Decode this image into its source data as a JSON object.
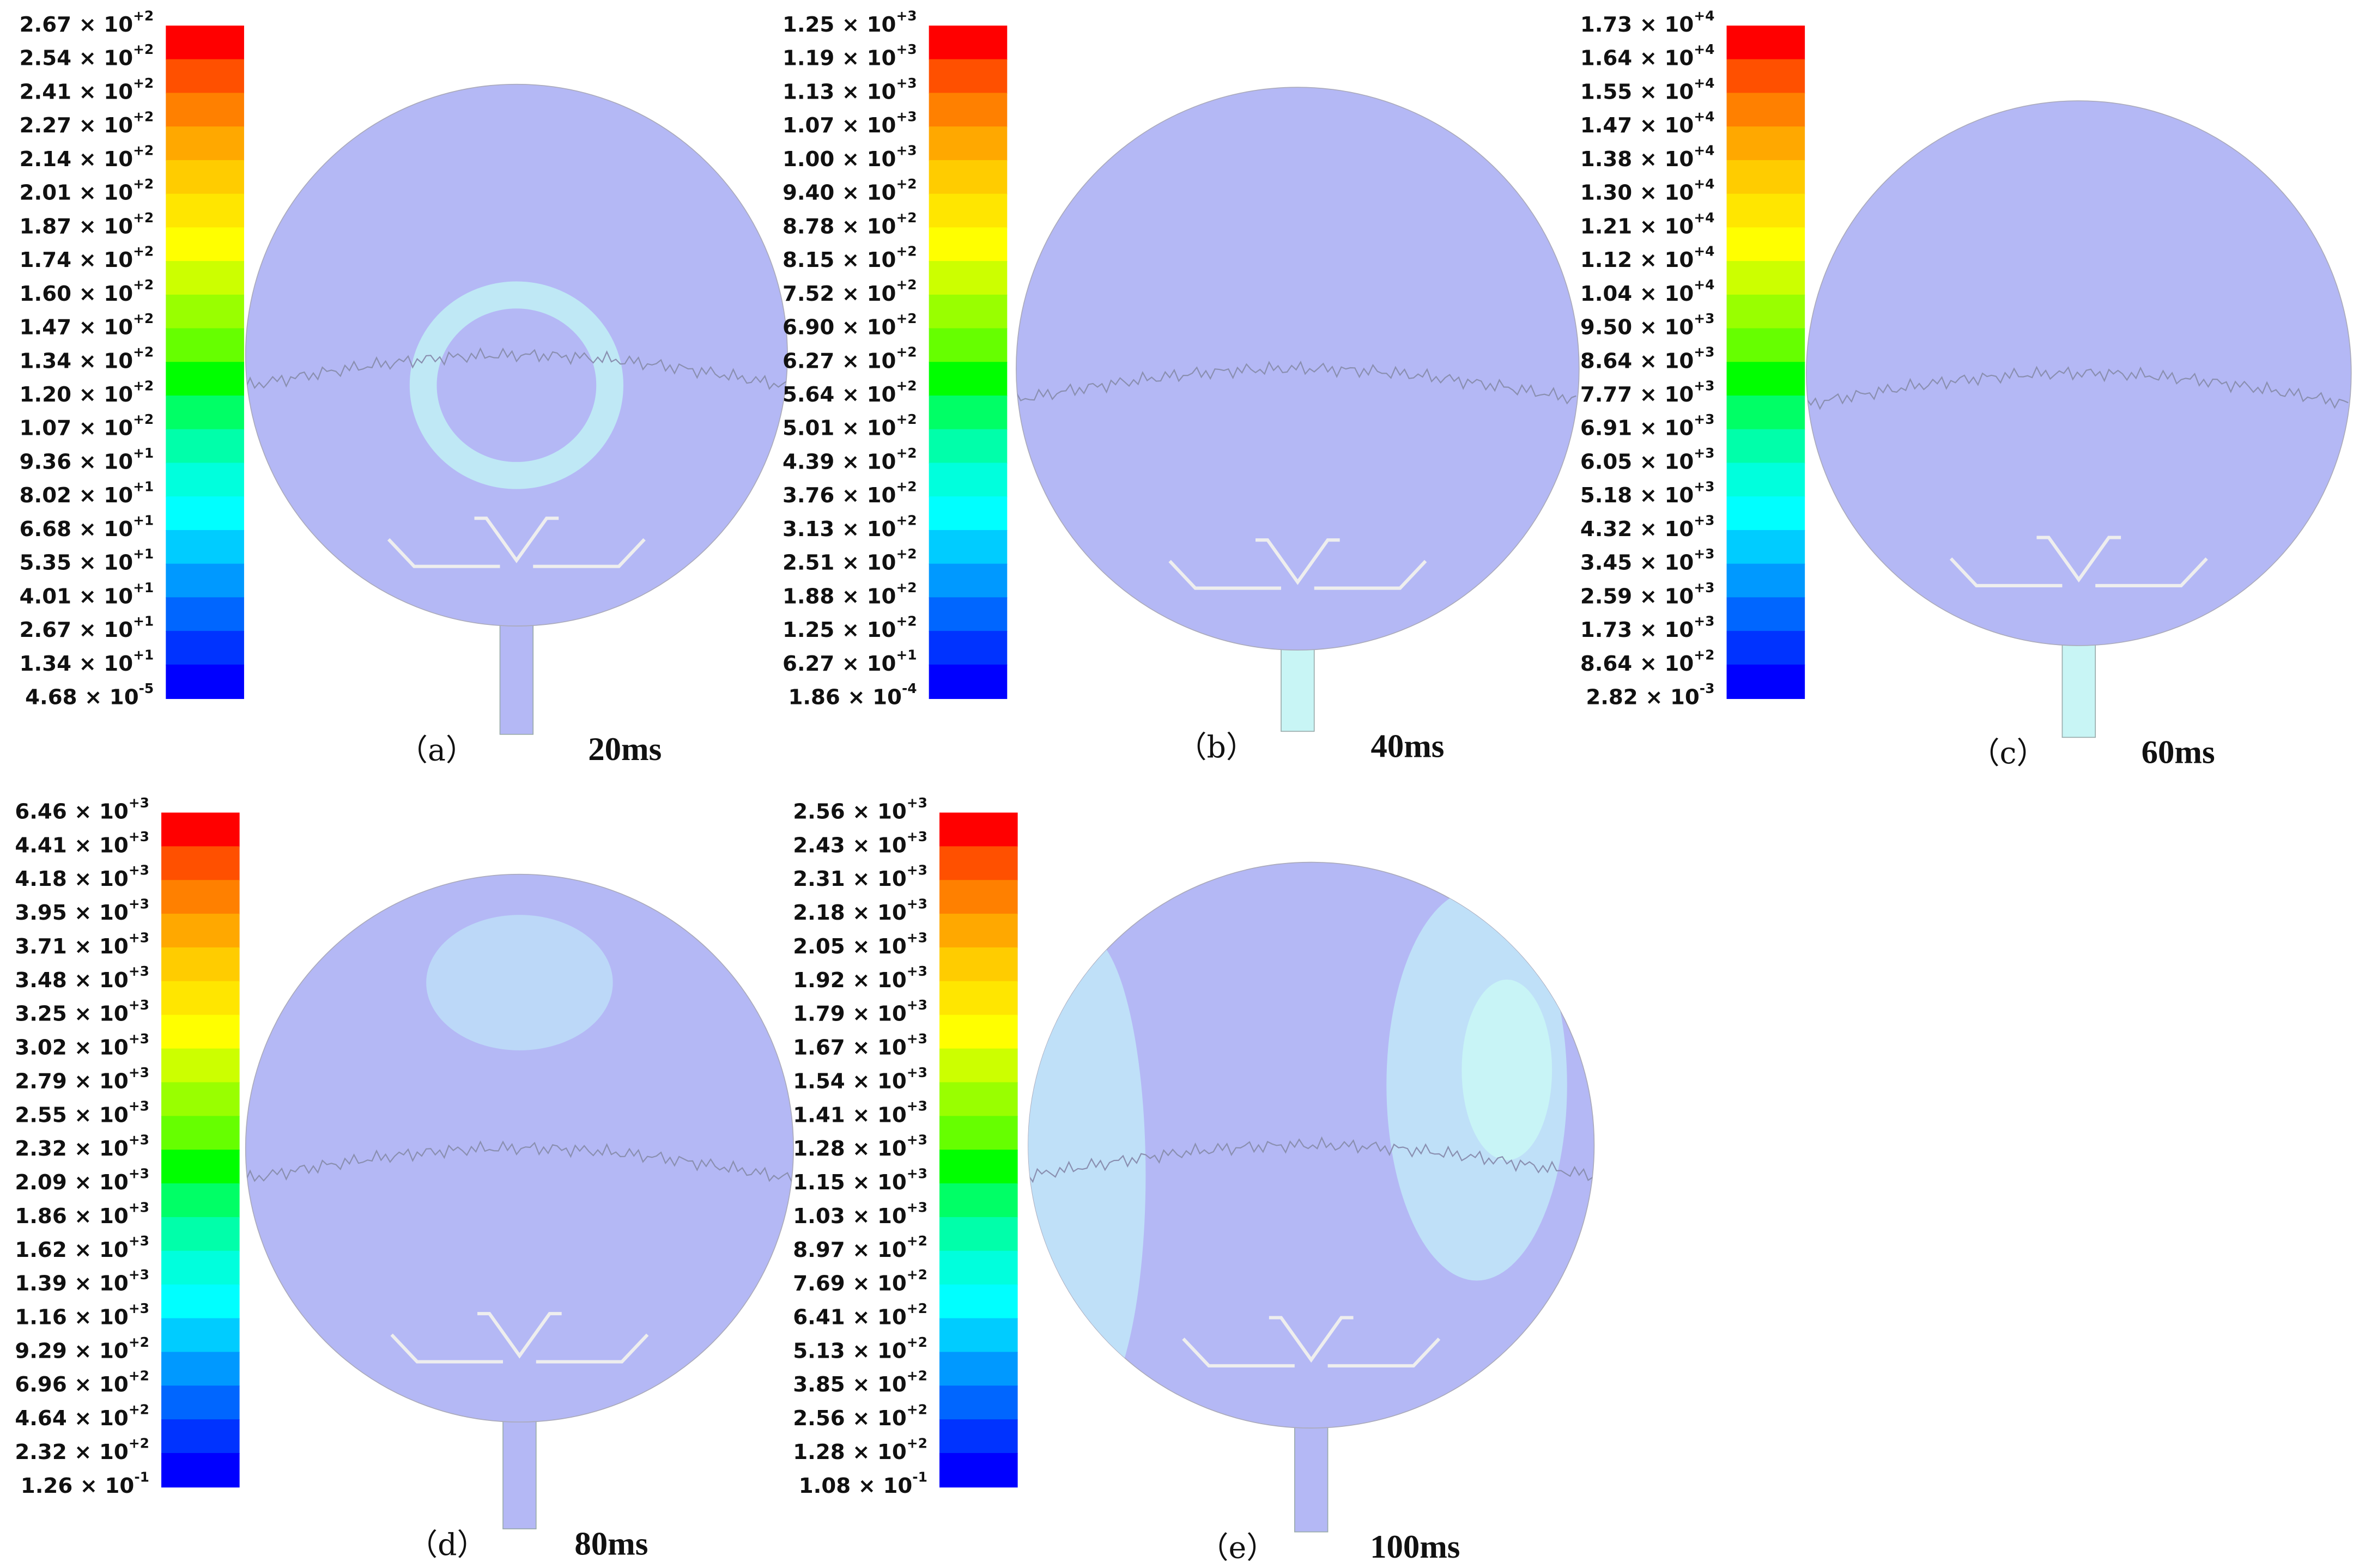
{
  "colorbar": [
    "#ff0000",
    "#ff5000",
    "#ff8000",
    "#ffa800",
    "#ffcc00",
    "#ffe600",
    "#ffff00",
    "#ccff00",
    "#99ff00",
    "#66ff00",
    "#00ff00",
    "#00ff66",
    "#00ffaa",
    "#00ffdd",
    "#00ffff",
    "#00ccff",
    "#0099ff",
    "#0066ff",
    "#0033ff",
    "#0000ff"
  ],
  "panels": [
    {
      "label": "（a）",
      "time": "20ms",
      "legend": [
        {
          "base": "2.67 × 10",
          "exp": "+2"
        },
        {
          "base": "2.54 × 10",
          "exp": "+2"
        },
        {
          "base": "2.41 × 10",
          "exp": "+2"
        },
        {
          "base": "2.27 × 10",
          "exp": "+2"
        },
        {
          "base": "2.14 × 10",
          "exp": "+2"
        },
        {
          "base": "2.01 × 10",
          "exp": "+2"
        },
        {
          "base": "1.87 × 10",
          "exp": "+2"
        },
        {
          "base": "1.74 × 10",
          "exp": "+2"
        },
        {
          "base": "1.60 × 10",
          "exp": "+2"
        },
        {
          "base": "1.47 × 10",
          "exp": "+2"
        },
        {
          "base": "1.34 × 10",
          "exp": "+2"
        },
        {
          "base": "1.20 × 10",
          "exp": "+2"
        },
        {
          "base": "1.07 × 10",
          "exp": "+2"
        },
        {
          "base": "9.36 × 10",
          "exp": "+1"
        },
        {
          "base": "8.02 × 10",
          "exp": "+1"
        },
        {
          "base": "6.68 × 10",
          "exp": "+1"
        },
        {
          "base": "5.35 × 10",
          "exp": "+1"
        },
        {
          "base": "4.01 × 10",
          "exp": "+1"
        },
        {
          "base": "2.67 × 10",
          "exp": "+1"
        },
        {
          "base": "1.34 × 10",
          "exp": "+1"
        },
        {
          "base": "4.68 × 10",
          "exp": "-5"
        }
      ]
    },
    {
      "label": "（b）",
      "time": "40ms",
      "legend": [
        {
          "base": "1.25 × 10",
          "exp": "+3"
        },
        {
          "base": "1.19 × 10",
          "exp": "+3"
        },
        {
          "base": "1.13 × 10",
          "exp": "+3"
        },
        {
          "base": "1.07 × 10",
          "exp": "+3"
        },
        {
          "base": "1.00 × 10",
          "exp": "+3"
        },
        {
          "base": "9.40 × 10",
          "exp": "+2"
        },
        {
          "base": "8.78 × 10",
          "exp": "+2"
        },
        {
          "base": "8.15 × 10",
          "exp": "+2"
        },
        {
          "base": "7.52 × 10",
          "exp": "+2"
        },
        {
          "base": "6.90 × 10",
          "exp": "+2"
        },
        {
          "base": "6.27 × 10",
          "exp": "+2"
        },
        {
          "base": "5.64 × 10",
          "exp": "+2"
        },
        {
          "base": "5.01 × 10",
          "exp": "+2"
        },
        {
          "base": "4.39 × 10",
          "exp": "+2"
        },
        {
          "base": "3.76 × 10",
          "exp": "+2"
        },
        {
          "base": "3.13 × 10",
          "exp": "+2"
        },
        {
          "base": "2.51 × 10",
          "exp": "+2"
        },
        {
          "base": "1.88 × 10",
          "exp": "+2"
        },
        {
          "base": "1.25 × 10",
          "exp": "+2"
        },
        {
          "base": "6.27 × 10",
          "exp": "+1"
        },
        {
          "base": "1.86 × 10",
          "exp": "-4"
        }
      ]
    },
    {
      "label": "（c）",
      "time": "60ms",
      "legend": [
        {
          "base": "1.73 × 10",
          "exp": "+4"
        },
        {
          "base": "1.64 × 10",
          "exp": "+4"
        },
        {
          "base": "1.55 × 10",
          "exp": "+4"
        },
        {
          "base": "1.47 × 10",
          "exp": "+4"
        },
        {
          "base": "1.38 × 10",
          "exp": "+4"
        },
        {
          "base": "1.30 × 10",
          "exp": "+4"
        },
        {
          "base": "1.21 × 10",
          "exp": "+4"
        },
        {
          "base": "1.12 × 10",
          "exp": "+4"
        },
        {
          "base": "1.04 × 10",
          "exp": "+4"
        },
        {
          "base": "9.50 × 10",
          "exp": "+3"
        },
        {
          "base": "8.64 × 10",
          "exp": "+3"
        },
        {
          "base": "7.77 × 10",
          "exp": "+3"
        },
        {
          "base": "6.91 × 10",
          "exp": "+3"
        },
        {
          "base": "6.05 × 10",
          "exp": "+3"
        },
        {
          "base": "5.18 × 10",
          "exp": "+3"
        },
        {
          "base": "4.32 × 10",
          "exp": "+3"
        },
        {
          "base": "3.45 × 10",
          "exp": "+3"
        },
        {
          "base": "2.59 × 10",
          "exp": "+3"
        },
        {
          "base": "1.73 × 10",
          "exp": "+3"
        },
        {
          "base": "8.64 × 10",
          "exp": "+2"
        },
        {
          "base": "2.82 × 10",
          "exp": "-3"
        }
      ]
    },
    {
      "label": "（d）",
      "time": "80ms",
      "legend": [
        {
          "base": "6.46 × 10",
          "exp": "+3"
        },
        {
          "base": "4.41 × 10",
          "exp": "+3"
        },
        {
          "base": "4.18 × 10",
          "exp": "+3"
        },
        {
          "base": "3.95 × 10",
          "exp": "+3"
        },
        {
          "base": "3.71 × 10",
          "exp": "+3"
        },
        {
          "base": "3.48 × 10",
          "exp": "+3"
        },
        {
          "base": "3.25 × 10",
          "exp": "+3"
        },
        {
          "base": "3.02 × 10",
          "exp": "+3"
        },
        {
          "base": "2.79 × 10",
          "exp": "+3"
        },
        {
          "base": "2.55 × 10",
          "exp": "+3"
        },
        {
          "base": "2.32 × 10",
          "exp": "+3"
        },
        {
          "base": "2.09 × 10",
          "exp": "+3"
        },
        {
          "base": "1.86 × 10",
          "exp": "+3"
        },
        {
          "base": "1.62 × 10",
          "exp": "+3"
        },
        {
          "base": "1.39 × 10",
          "exp": "+3"
        },
        {
          "base": "1.16 × 10",
          "exp": "+3"
        },
        {
          "base": "9.29 × 10",
          "exp": "+2"
        },
        {
          "base": "6.96 × 10",
          "exp": "+2"
        },
        {
          "base": "4.64 × 10",
          "exp": "+2"
        },
        {
          "base": "2.32 × 10",
          "exp": "+2"
        },
        {
          "base": "1.26 × 10",
          "exp": "-1"
        }
      ]
    },
    {
      "label": "（e）",
      "time": "100ms",
      "legend": [
        {
          "base": "2.56 × 10",
          "exp": "+3"
        },
        {
          "base": "2.43 × 10",
          "exp": "+3"
        },
        {
          "base": "2.31 × 10",
          "exp": "+3"
        },
        {
          "base": "2.18 × 10",
          "exp": "+3"
        },
        {
          "base": "2.05 × 10",
          "exp": "+3"
        },
        {
          "base": "1.92 × 10",
          "exp": "+3"
        },
        {
          "base": "1.79 × 10",
          "exp": "+3"
        },
        {
          "base": "1.67 × 10",
          "exp": "+3"
        },
        {
          "base": "1.54 × 10",
          "exp": "+3"
        },
        {
          "base": "1.41 × 10",
          "exp": "+3"
        },
        {
          "base": "1.28 × 10",
          "exp": "+3"
        },
        {
          "base": "1.15 × 10",
          "exp": "+3"
        },
        {
          "base": "1.03 × 10",
          "exp": "+3"
        },
        {
          "base": "8.97 × 10",
          "exp": "+2"
        },
        {
          "base": "7.69 × 10",
          "exp": "+2"
        },
        {
          "base": "6.41 × 10",
          "exp": "+2"
        },
        {
          "base": "5.13 × 10",
          "exp": "+2"
        },
        {
          "base": "3.85 × 10",
          "exp": "+2"
        },
        {
          "base": "2.56 × 10",
          "exp": "+2"
        },
        {
          "base": "1.28 × 10",
          "exp": "+2"
        },
        {
          "base": "1.08 × 10",
          "exp": "-1"
        }
      ]
    }
  ]
}
